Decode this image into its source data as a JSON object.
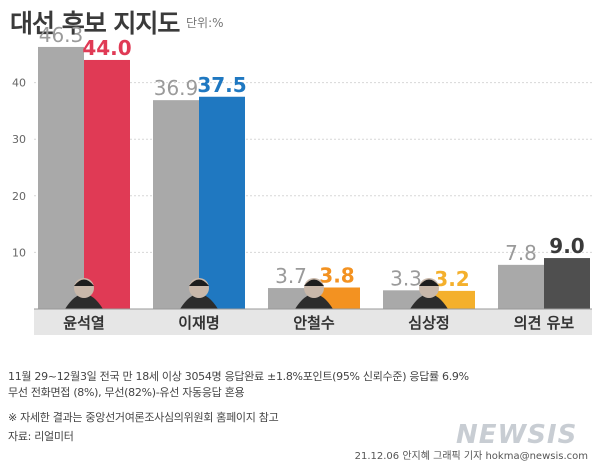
{
  "header": {
    "title": "대선 후보 지지도",
    "unit": "단위:%"
  },
  "chart_data": {
    "type": "bar",
    "categories": [
      "윤석열",
      "이재명",
      "안철수",
      "심상정",
      "의견 유보"
    ],
    "series": [
      {
        "values": [
          46.3,
          36.9,
          3.7,
          3.3,
          7.8
        ]
      },
      {
        "values": [
          44.0,
          37.5,
          3.8,
          3.2,
          9.0
        ]
      }
    ],
    "value_labels": [
      [
        "46.3",
        "36.9",
        "3.7",
        "3.3",
        "7.8"
      ],
      [
        "44.0",
        "37.5",
        "3.8",
        "3.2",
        "9.0"
      ]
    ],
    "yticks": [
      10,
      20,
      30,
      40
    ],
    "ylim": [
      0,
      50
    ],
    "grid": true,
    "colors": {
      "prev": "#a9a9a9",
      "current": [
        "#e03a55",
        "#1f78c1",
        "#f39221",
        "#f4b02c",
        "#4f4f4f"
      ],
      "label_prev": "#9a9a9a",
      "label_current": [
        "#e03a55",
        "#1f78c1",
        "#f39221",
        "#f4b02c",
        "#3a3a3a"
      ]
    }
  },
  "notes": {
    "line1": "11월 29~12월3일 전국 만 18세 이상 3054명 응답완료 ±1.8%포인트(95% 신뢰수준) 응답률 6.9%",
    "line2": "무선 전화면접 (8%), 무선(82%)-유선 자동응답 혼용",
    "line3": "※ 자세한 결과는 중앙선거여론조사심의위원회 홈페이지 참고",
    "line4": "자료: 리얼미터"
  },
  "footer": {
    "credit": "21.12.06 안지혜 그래픽 기자 hokma@newsis.com",
    "logo": "NEWSIS"
  }
}
